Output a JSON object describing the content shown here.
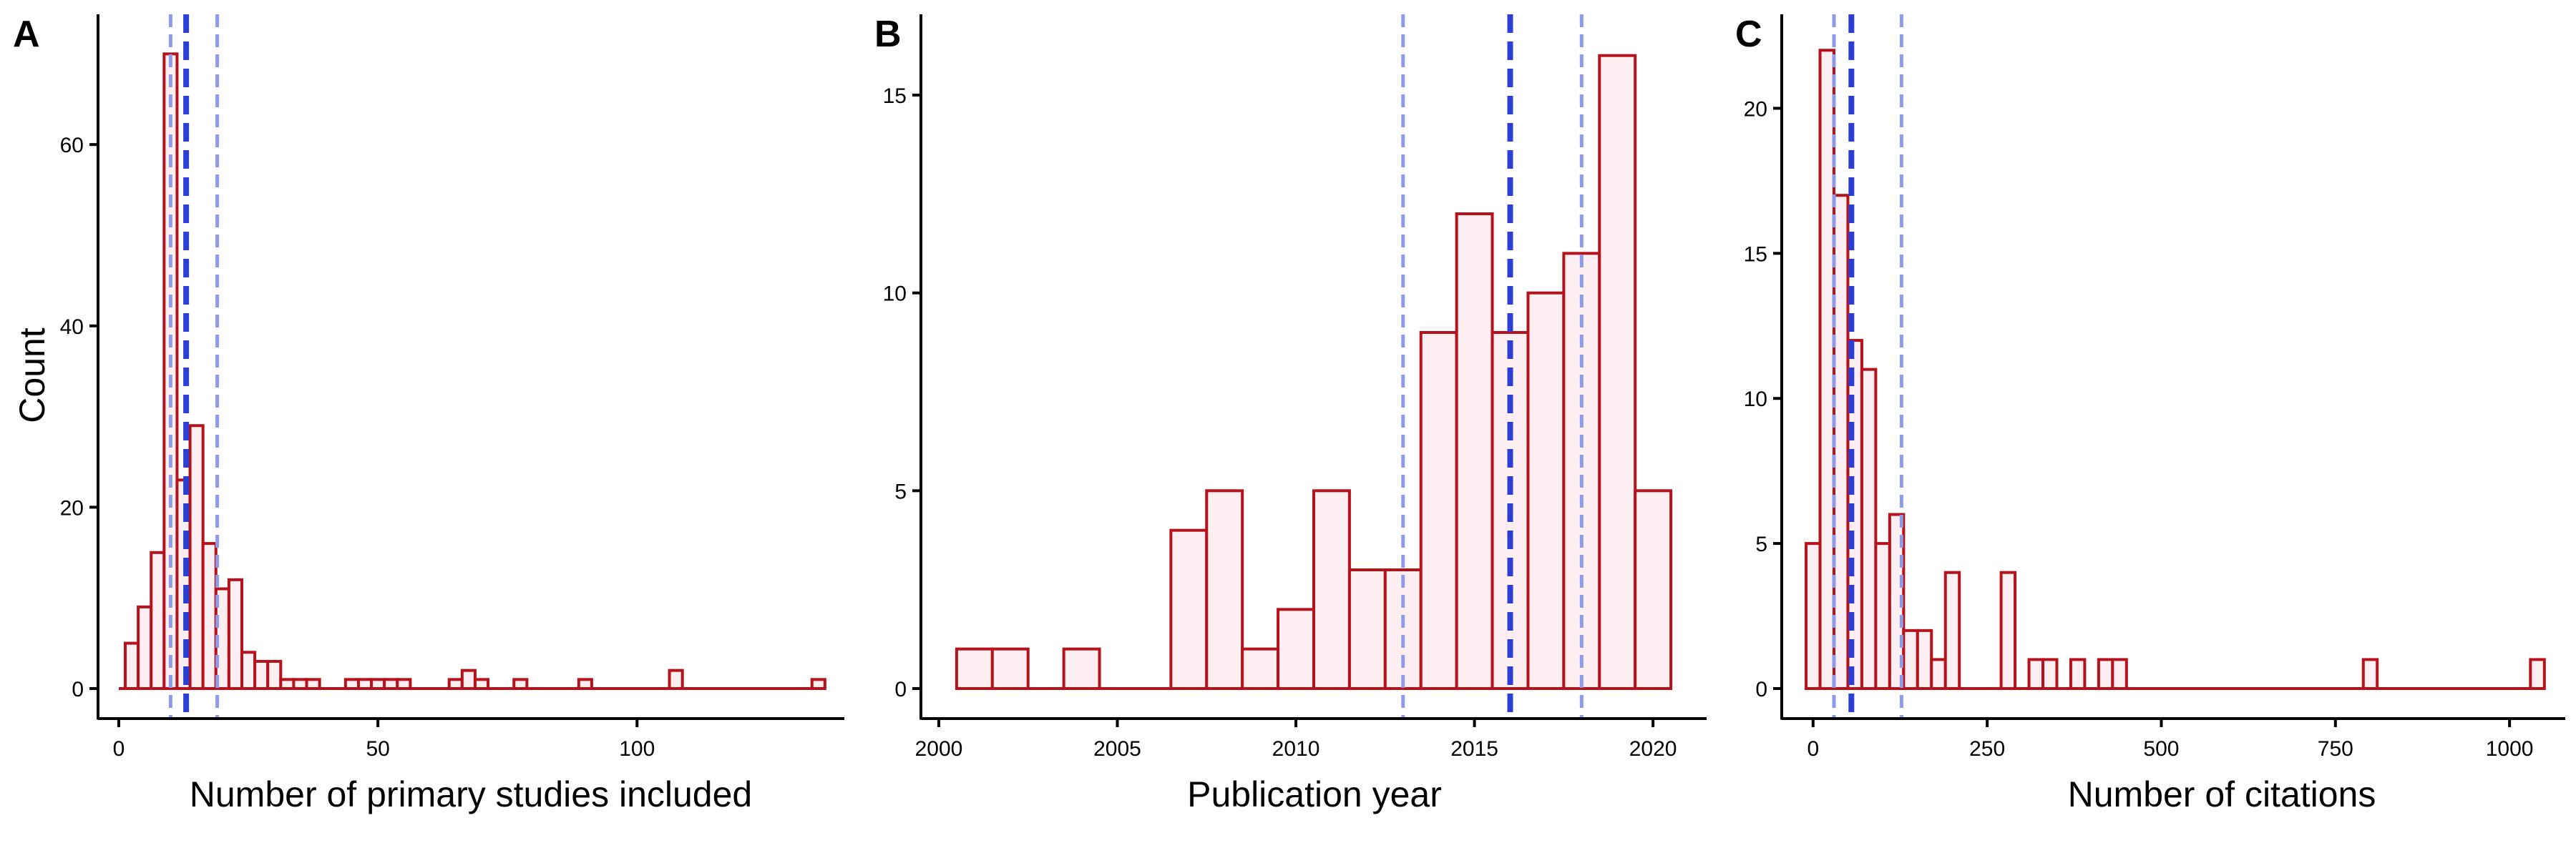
{
  "figure": {
    "colors": {
      "bar_stroke": "#B5121B",
      "bar_fill": "#FDEEF2",
      "median_line": "#2B3FD4",
      "quartile_line": "#8E9BE8",
      "axis": "#000000"
    },
    "ylabel": "Count"
  },
  "chart_data": [
    {
      "type": "bar",
      "panel": "A",
      "title": "",
      "xlabel": "Number of primary studies included",
      "ylabel": "Count",
      "xlim": [
        -4,
        140
      ],
      "ylim": [
        0,
        72
      ],
      "xticks": [
        0,
        50,
        100
      ],
      "yticks": [
        0,
        20,
        40,
        60
      ],
      "binwidth": 2.5,
      "bins": [
        {
          "x": 2.5,
          "count": 5
        },
        {
          "x": 5,
          "count": 9
        },
        {
          "x": 7.5,
          "count": 15
        },
        {
          "x": 10,
          "count": 70
        },
        {
          "x": 12.5,
          "count": 23
        },
        {
          "x": 15,
          "count": 29
        },
        {
          "x": 17.5,
          "count": 16
        },
        {
          "x": 20,
          "count": 11
        },
        {
          "x": 22.5,
          "count": 12
        },
        {
          "x": 25,
          "count": 4
        },
        {
          "x": 27.5,
          "count": 3
        },
        {
          "x": 30,
          "count": 3
        },
        {
          "x": 32.5,
          "count": 1
        },
        {
          "x": 35,
          "count": 1
        },
        {
          "x": 37.5,
          "count": 1
        },
        {
          "x": 40,
          "count": 0
        },
        {
          "x": 42.5,
          "count": 0
        },
        {
          "x": 45,
          "count": 1
        },
        {
          "x": 47.5,
          "count": 1
        },
        {
          "x": 50,
          "count": 1
        },
        {
          "x": 52.5,
          "count": 1
        },
        {
          "x": 55,
          "count": 1
        },
        {
          "x": 57.5,
          "count": 0
        },
        {
          "x": 60,
          "count": 0
        },
        {
          "x": 62.5,
          "count": 0
        },
        {
          "x": 65,
          "count": 1
        },
        {
          "x": 67.5,
          "count": 2
        },
        {
          "x": 70,
          "count": 1
        },
        {
          "x": 77.5,
          "count": 1
        },
        {
          "x": 90,
          "count": 1
        },
        {
          "x": 107.5,
          "count": 2
        },
        {
          "x": 135,
          "count": 1
        }
      ],
      "baseline_range": [
        0,
        136
      ],
      "median": 13,
      "quartiles": [
        10,
        19
      ]
    },
    {
      "type": "bar",
      "panel": "B",
      "title": "",
      "xlabel": "Publication year",
      "ylabel": "",
      "xlim": [
        1999.5,
        2021.5
      ],
      "ylim": [
        0,
        16.5
      ],
      "xticks": [
        2000,
        2005,
        2010,
        2015,
        2020
      ],
      "yticks": [
        0,
        5,
        10,
        15
      ],
      "binwidth": 1,
      "bins": [
        {
          "x": 2001,
          "count": 1
        },
        {
          "x": 2002,
          "count": 1
        },
        {
          "x": 2003,
          "count": 0
        },
        {
          "x": 2004,
          "count": 1
        },
        {
          "x": 2005,
          "count": 0
        },
        {
          "x": 2006,
          "count": 0
        },
        {
          "x": 2007,
          "count": 4
        },
        {
          "x": 2008,
          "count": 5
        },
        {
          "x": 2009,
          "count": 1
        },
        {
          "x": 2010,
          "count": 2
        },
        {
          "x": 2011,
          "count": 5
        },
        {
          "x": 2012,
          "count": 3
        },
        {
          "x": 2013,
          "count": 3
        },
        {
          "x": 2014,
          "count": 9
        },
        {
          "x": 2015,
          "count": 12
        },
        {
          "x": 2016,
          "count": 9
        },
        {
          "x": 2017,
          "count": 10
        },
        {
          "x": 2018,
          "count": 11
        },
        {
          "x": 2019,
          "count": 16
        },
        {
          "x": 2020,
          "count": 5
        }
      ],
      "baseline_range": [
        2000.5,
        2020.5
      ],
      "median": 2016,
      "quartiles": [
        2013,
        2018
      ]
    },
    {
      "type": "bar",
      "panel": "C",
      "title": "",
      "xlabel": "Number of citations",
      "ylabel": "",
      "xlim": [
        -45,
        1080
      ],
      "ylim": [
        0,
        22.5
      ],
      "xticks": [
        0,
        250,
        500,
        750,
        1000
      ],
      "yticks": [
        0,
        5,
        10,
        15,
        20
      ],
      "binwidth": 20,
      "bins": [
        {
          "x": 0,
          "count": 5
        },
        {
          "x": 20,
          "count": 22
        },
        {
          "x": 40,
          "count": 17
        },
        {
          "x": 60,
          "count": 12
        },
        {
          "x": 80,
          "count": 11
        },
        {
          "x": 100,
          "count": 5
        },
        {
          "x": 120,
          "count": 6
        },
        {
          "x": 140,
          "count": 2
        },
        {
          "x": 160,
          "count": 2
        },
        {
          "x": 180,
          "count": 1
        },
        {
          "x": 200,
          "count": 4
        },
        {
          "x": 220,
          "count": 0
        },
        {
          "x": 240,
          "count": 0
        },
        {
          "x": 260,
          "count": 0
        },
        {
          "x": 280,
          "count": 4
        },
        {
          "x": 300,
          "count": 0
        },
        {
          "x": 320,
          "count": 1
        },
        {
          "x": 340,
          "count": 1
        },
        {
          "x": 360,
          "count": 0
        },
        {
          "x": 380,
          "count": 1
        },
        {
          "x": 400,
          "count": 0
        },
        {
          "x": 420,
          "count": 1
        },
        {
          "x": 440,
          "count": 1
        },
        {
          "x": 800,
          "count": 1
        },
        {
          "x": 1040,
          "count": 1
        }
      ],
      "baseline_range": [
        -10,
        1050
      ],
      "median": 55,
      "quartiles": [
        30,
        127
      ]
    }
  ]
}
